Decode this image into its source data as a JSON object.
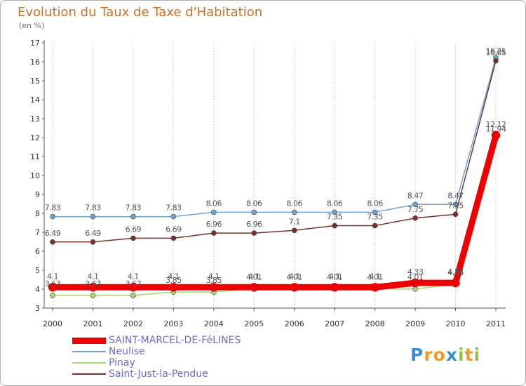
{
  "title": "Evolution du Taux de Taxe d'Habitation",
  "subtitle": "(en %)",
  "logo": {
    "letters": [
      {
        "char": "P",
        "color": "#3a8fd6"
      },
      {
        "char": "r",
        "color": "#f29a1f"
      },
      {
        "char": "o",
        "color": "#f29a1f"
      },
      {
        "char": "x",
        "color": "#3a8fd6"
      },
      {
        "char": "i",
        "color": "#8cc63f"
      },
      {
        "char": "t",
        "color": "#f29a1f"
      },
      {
        "char": "i",
        "color": "#8cc63f"
      }
    ]
  },
  "chart_data": {
    "type": "line",
    "title": "Evolution du Taux de Taxe d'Habitation",
    "ylabel": "(en %)",
    "xlabel": "",
    "ylim": [
      3,
      17
    ],
    "yticks": [
      "3",
      "4",
      "5",
      "6",
      "7",
      "8",
      "9",
      "10",
      "11",
      "12",
      "13",
      "14",
      "15",
      "16",
      "17"
    ],
    "categories": [
      "2000",
      "2001",
      "2002",
      "2003",
      "2004",
      "2005",
      "2006",
      "2007",
      "2008",
      "2009",
      "2010",
      "2011"
    ],
    "grid": "vertical dotted",
    "legend_position": "bottom-left",
    "series": [
      {
        "name": "SAINT-MARCEL-DE-FéLINES",
        "color": "#ee0000",
        "values": [
          4.1,
          4.1,
          4.1,
          4.1,
          4.1,
          4.1,
          4.1,
          4.1,
          4.1,
          4.33,
          4.33,
          12.12
        ],
        "labels": [
          "4.1",
          "4.1",
          "4.1",
          "4.1",
          "4.1",
          "4.1",
          "4.1",
          "4.1",
          "4.1",
          "4.33",
          "4.33",
          "12.12"
        ]
      },
      {
        "name": "Neulise",
        "color": "#6fa3d2",
        "values": [
          7.83,
          7.83,
          7.83,
          7.83,
          8.06,
          8.06,
          8.06,
          8.06,
          8.06,
          8.47,
          8.47,
          16.21
        ],
        "labels": [
          "7.83",
          "7.83",
          "7.83",
          "7.83",
          "8.06",
          "8.06",
          "8.06",
          "8.06",
          "8.06",
          "8.47",
          "8.47",
          "16.21"
        ]
      },
      {
        "name": "Pinay",
        "color": "#a6d86e",
        "values": [
          3.67,
          3.67,
          3.67,
          3.85,
          3.85,
          4.01,
          4.01,
          4.01,
          4.01,
          4.01,
          4.26,
          11.94
        ],
        "labels": [
          "3.67",
          "3.67",
          "3.67",
          "3.85",
          "3.85",
          "4.01",
          "4.01",
          "4.01",
          "4.01",
          "4.01",
          "4.26",
          "11.94"
        ]
      },
      {
        "name": "Saint-Just-la-Pendue",
        "color": "#7a2f2f",
        "values": [
          6.49,
          6.49,
          6.69,
          6.69,
          6.96,
          6.96,
          7.1,
          7.35,
          7.35,
          7.75,
          7.95,
          16.05
        ],
        "labels": [
          "6.49",
          "6.49",
          "6.69",
          "6.69",
          "6.96",
          "6.96",
          "7.1",
          "7.35",
          "7.35",
          "7.75",
          "7.95",
          "16.05"
        ]
      }
    ]
  }
}
